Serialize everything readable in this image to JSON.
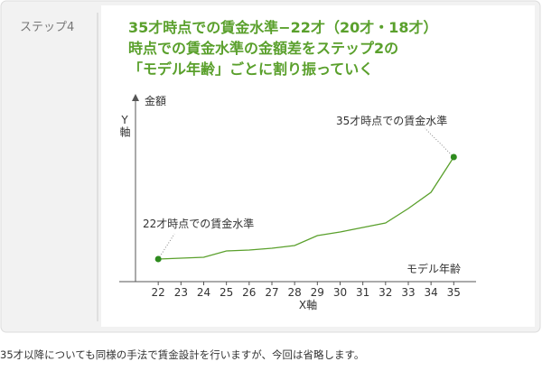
{
  "step": "ステップ4",
  "heading": [
    "35才時点での賃金水準−22才（20才・18才）",
    "時点での賃金水準の金額差をステップ2の",
    "「モデル年齢」ごとに割り振っていく"
  ],
  "chart_data": {
    "type": "line",
    "x": [
      22,
      23,
      24,
      25,
      26,
      27,
      28,
      29,
      30,
      31,
      32,
      33,
      34,
      35
    ],
    "values": [
      25,
      26,
      27,
      34,
      35,
      37,
      40,
      51,
      55,
      60,
      65,
      81,
      99,
      138
    ],
    "color": "#5aa02c",
    "xlim": [
      21,
      36.1
    ],
    "xticks": [
      22,
      23,
      24,
      25,
      26,
      27,
      28,
      29,
      30,
      31,
      32,
      33,
      34,
      35
    ],
    "ylim": [
      0,
      205
    ],
    "x_axis_label": "X軸",
    "x_axis_title": "モデル年齢",
    "y_axis_label": "Y軸",
    "y_axis_title": "金額",
    "annotations": [
      "22才時点での賃金水準",
      "35才時点での賃金水準"
    ]
  },
  "footnote": "35才以降についても同様の手法で賃金設計を行いますが、今回は省略します。"
}
